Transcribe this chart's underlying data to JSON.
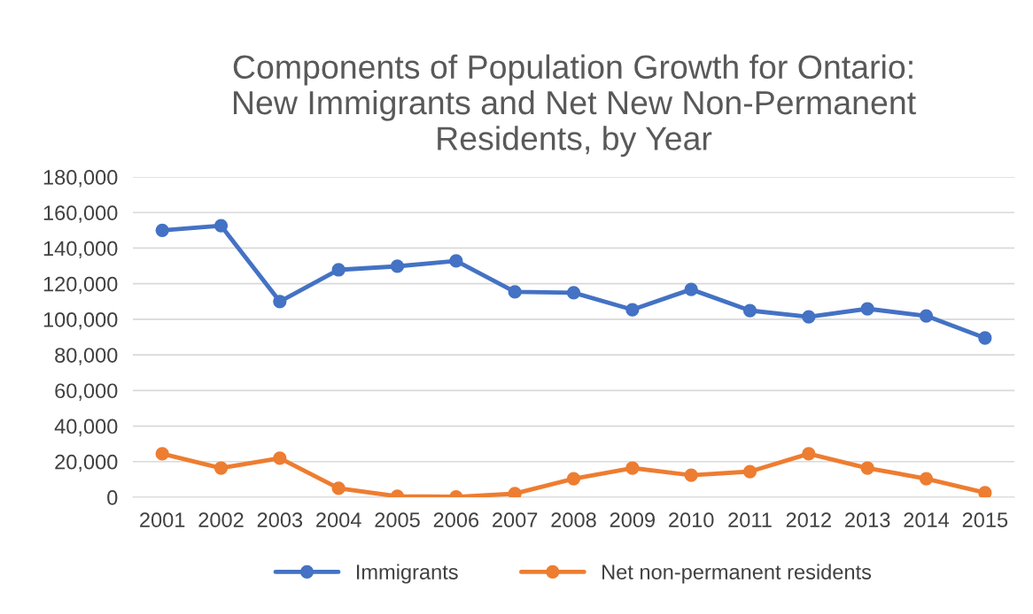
{
  "chart_data": {
    "type": "line",
    "title": "Components of Population Growth for Ontario:\nNew Immigrants and Net New Non-Permanent\nResidents, by Year",
    "categories": [
      "2001",
      "2002",
      "2003",
      "2004",
      "2005",
      "2006",
      "2007",
      "2008",
      "2009",
      "2010",
      "2011",
      "2012",
      "2013",
      "2014",
      "2015"
    ],
    "series": [
      {
        "name": "Immigrants",
        "color": "#4472c4",
        "values": [
          150000,
          152600,
          110000,
          127800,
          129800,
          132800,
          115400,
          114900,
          105400,
          116800,
          104900,
          101400,
          105900,
          101900,
          89500
        ]
      },
      {
        "name": "Net non-permanent residents",
        "color": "#ed7d31",
        "values": [
          24400,
          16400,
          21900,
          5000,
          500,
          200,
          2000,
          10400,
          16400,
          12400,
          14400,
          24400,
          16400,
          10400,
          2500
        ]
      }
    ],
    "ylim": [
      0,
      180000
    ],
    "yticks": [
      {
        "value": 0,
        "label": "0"
      },
      {
        "value": 20000,
        "label": "20,000"
      },
      {
        "value": 40000,
        "label": "40,000"
      },
      {
        "value": 60000,
        "label": "60,000"
      },
      {
        "value": 80000,
        "label": "80,000"
      },
      {
        "value": 100000,
        "label": "100,000"
      },
      {
        "value": 120000,
        "label": "120,000"
      },
      {
        "value": 140000,
        "label": "140,000"
      },
      {
        "value": 160000,
        "label": "160,000"
      },
      {
        "value": 180000,
        "label": "180,000"
      }
    ],
    "grid": "y",
    "legend": "bottom",
    "marker": "circle",
    "line_style": "solid"
  }
}
